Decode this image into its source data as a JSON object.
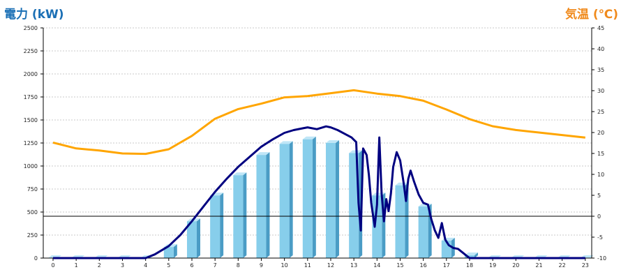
{
  "header": {
    "left_title": "電力 (kW)",
    "right_title": "気温 (℃)"
  },
  "colors": {
    "power_title": "#1a6fb5",
    "temp_title": "#f08a1c",
    "bar_front": "#87ceeb",
    "bar_side": "#4a9cc5",
    "bar_top": "#bfe6f7",
    "line_power": "#000080",
    "line_temp": "#ffa500",
    "grid": "#c8c8c8"
  },
  "chart_data": {
    "type": "bar",
    "x_label": "",
    "categories": [
      "0",
      "1",
      "2",
      "3",
      "4",
      "5",
      "6",
      "7",
      "8",
      "9",
      "10",
      "11",
      "12",
      "13",
      "14",
      "15",
      "16",
      "17",
      "18",
      "19",
      "20",
      "21",
      "22",
      "23"
    ],
    "left_axis": {
      "ylim": [
        0,
        2500
      ],
      "ticks": [
        0,
        250,
        500,
        750,
        1000,
        1250,
        1500,
        1750,
        2000,
        2250,
        2500
      ]
    },
    "right_axis": {
      "ylim": [
        -10,
        45
      ],
      "ticks": [
        -10,
        -5,
        0,
        5,
        10,
        15,
        20,
        25,
        30,
        35,
        40,
        45
      ]
    },
    "grid": true,
    "series": [
      {
        "type": "bar",
        "axis": "left",
        "values": [
          0,
          0,
          0,
          0,
          0,
          120,
          400,
          680,
          900,
          1120,
          1240,
          1290,
          1250,
          1140,
          680,
          790,
          560,
          190,
          30,
          0,
          0,
          0,
          0,
          0
        ]
      },
      {
        "type": "line",
        "axis": "left",
        "points": [
          [
            0,
            0
          ],
          [
            1,
            0
          ],
          [
            2,
            0
          ],
          [
            3,
            0
          ],
          [
            4,
            0
          ],
          [
            4.4,
            40
          ],
          [
            5,
            130
          ],
          [
            5.5,
            250
          ],
          [
            6,
            400
          ],
          [
            6.5,
            560
          ],
          [
            7,
            720
          ],
          [
            7.5,
            860
          ],
          [
            8,
            990
          ],
          [
            8.5,
            1100
          ],
          [
            9,
            1210
          ],
          [
            9.5,
            1290
          ],
          [
            10,
            1360
          ],
          [
            10.4,
            1390
          ],
          [
            10.8,
            1410
          ],
          [
            11,
            1420
          ],
          [
            11.4,
            1400
          ],
          [
            11.8,
            1430
          ],
          [
            12,
            1420
          ],
          [
            12.3,
            1390
          ],
          [
            12.6,
            1350
          ],
          [
            12.9,
            1310
          ],
          [
            13.1,
            1260
          ],
          [
            13.2,
            600
          ],
          [
            13.3,
            300
          ],
          [
            13.4,
            1190
          ],
          [
            13.55,
            1120
          ],
          [
            13.65,
            900
          ],
          [
            13.75,
            600
          ],
          [
            13.9,
            340
          ],
          [
            14,
            580
          ],
          [
            14.1,
            1310
          ],
          [
            14.2,
            700
          ],
          [
            14.3,
            400
          ],
          [
            14.4,
            640
          ],
          [
            14.5,
            510
          ],
          [
            14.6,
            700
          ],
          [
            14.7,
            990
          ],
          [
            14.85,
            1150
          ],
          [
            15,
            1060
          ],
          [
            15.15,
            820
          ],
          [
            15.25,
            620
          ],
          [
            15.35,
            860
          ],
          [
            15.45,
            950
          ],
          [
            15.6,
            830
          ],
          [
            15.8,
            690
          ],
          [
            16,
            600
          ],
          [
            16.2,
            580
          ],
          [
            16.35,
            420
          ],
          [
            16.5,
            300
          ],
          [
            16.65,
            220
          ],
          [
            16.8,
            380
          ],
          [
            16.95,
            200
          ],
          [
            17.1,
            140
          ],
          [
            17.3,
            110
          ],
          [
            17.5,
            100
          ],
          [
            17.7,
            60
          ],
          [
            17.9,
            20
          ],
          [
            18,
            0
          ],
          [
            19,
            0
          ],
          [
            20,
            0
          ],
          [
            21,
            0
          ],
          [
            22,
            0
          ],
          [
            23,
            0
          ]
        ]
      },
      {
        "type": "line",
        "axis": "right",
        "values": [
          17.6,
          16.2,
          15.7,
          15.0,
          14.9,
          16.0,
          19.2,
          23.3,
          25.6,
          26.9,
          28.4,
          28.7,
          29.4,
          30.1,
          29.3,
          28.7,
          27.6,
          25.5,
          23.2,
          21.5,
          20.6,
          20.0,
          19.4,
          18.8
        ]
      }
    ]
  }
}
